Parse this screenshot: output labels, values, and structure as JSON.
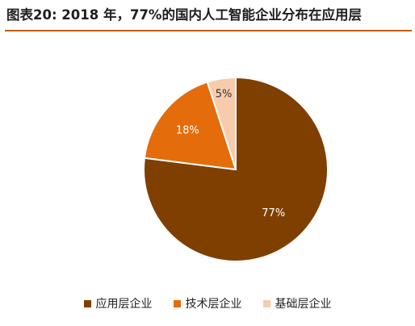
{
  "title": "图表20:  2018 年，77%的国内人工智能企业分布在应用层",
  "colors": {
    "accent_rule": "#c55a11",
    "slices": [
      "#7f3f00",
      "#e46c0a",
      "#f8cbad"
    ],
    "slice_border": "#ffffff"
  },
  "chart_data": {
    "type": "pie",
    "title": "2018 年，77%的国内人工智能企业分布在应用层",
    "categories": [
      "应用层企业",
      "技术层企业",
      "基础层企业"
    ],
    "values": [
      77,
      18,
      5
    ],
    "data_labels": [
      "77%",
      "18%",
      "5%"
    ],
    "start_angle_deg": 0,
    "direction": "clockwise",
    "legend_position": "bottom"
  }
}
